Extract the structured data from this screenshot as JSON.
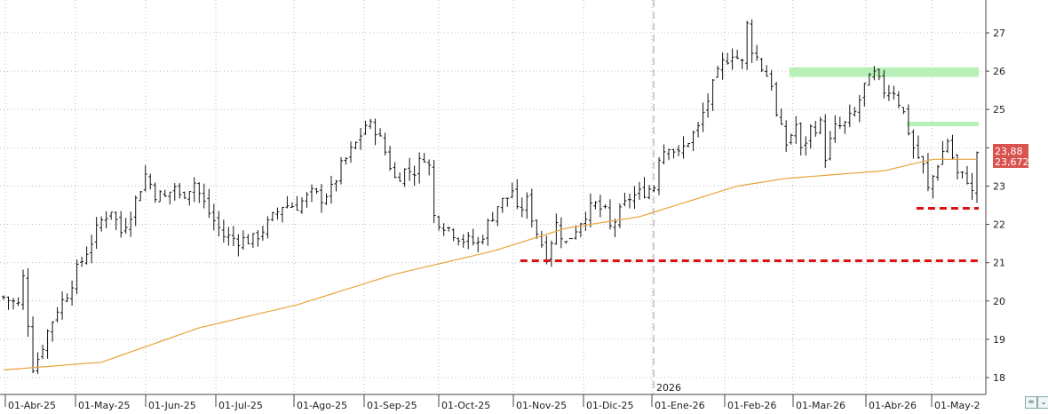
{
  "chart_data": {
    "type": "ohlc",
    "y_axis": {
      "min": 17.7,
      "max": 27.9,
      "ticks": [
        18,
        19,
        20,
        21,
        22,
        23,
        24,
        25,
        26,
        27
      ]
    },
    "x_axis": {
      "ticks": [
        "01-Abr-25",
        "01-May-25",
        "01-Jun-25",
        "01-Jul-25",
        "01-Ago-25",
        "01-Sep-25",
        "01-Oct-25",
        "01-Nov-25",
        "01-Dic-25",
        "01-Ene-26",
        "01-Feb-26",
        "01-Mar-26",
        "01-Abr-26",
        "01-May-2"
      ],
      "year_label": "2026"
    },
    "anchors": [
      [
        0,
        20.1
      ],
      [
        3,
        19.9
      ],
      [
        4,
        20.6
      ],
      [
        6,
        18.3
      ],
      [
        7,
        18.5
      ],
      [
        9,
        19.2
      ],
      [
        11,
        19.8
      ],
      [
        13,
        20.2
      ],
      [
        15,
        20.8
      ],
      [
        17,
        21.3
      ],
      [
        20,
        22.1
      ],
      [
        22,
        22.4
      ],
      [
        24,
        21.8
      ],
      [
        26,
        22.3
      ],
      [
        29,
        23.3
      ],
      [
        31,
        22.8
      ],
      [
        33,
        22.7
      ],
      [
        35,
        23.0
      ],
      [
        36,
        22.7
      ],
      [
        39,
        23.1
      ],
      [
        40,
        22.8
      ],
      [
        42,
        22.3
      ],
      [
        45,
        21.7
      ],
      [
        48,
        21.6
      ],
      [
        51,
        21.6
      ],
      [
        54,
        22.0
      ],
      [
        57,
        22.5
      ],
      [
        60,
        22.5
      ],
      [
        63,
        22.8
      ],
      [
        65,
        22.7
      ],
      [
        67,
        22.9
      ],
      [
        69,
        23.5
      ],
      [
        72,
        24.1
      ],
      [
        74,
        24.6
      ],
      [
        76,
        24.5
      ],
      [
        78,
        23.9
      ],
      [
        80,
        23.2
      ],
      [
        82,
        23.4
      ],
      [
        84,
        23.4
      ],
      [
        86,
        23.8
      ],
      [
        87,
        23.5
      ],
      [
        88,
        22.2
      ],
      [
        90,
        22.0
      ],
      [
        92,
        21.8
      ],
      [
        94,
        21.6
      ],
      [
        97,
        21.5
      ],
      [
        99,
        22.0
      ],
      [
        101,
        22.5
      ],
      [
        103,
        22.7
      ],
      [
        104,
        22.9
      ],
      [
        105,
        22.3
      ],
      [
        107,
        22.6
      ],
      [
        109,
        21.8
      ],
      [
        111,
        21.2
      ],
      [
        113,
        22.0
      ],
      [
        115,
        21.5
      ],
      [
        117,
        21.9
      ],
      [
        119,
        22.3
      ],
      [
        121,
        22.5
      ],
      [
        123,
        22.3
      ],
      [
        124,
        21.9
      ],
      [
        126,
        22.3
      ],
      [
        128,
        22.7
      ],
      [
        130,
        22.8
      ],
      [
        133,
        23.0
      ],
      [
        134,
        23.8
      ],
      [
        136,
        24.1
      ],
      [
        138,
        23.8
      ],
      [
        140,
        24.2
      ],
      [
        142,
        24.5
      ],
      [
        143,
        24.9
      ],
      [
        145,
        25.6
      ],
      [
        147,
        26.2
      ],
      [
        149,
        26.5
      ],
      [
        151,
        26.2
      ],
      [
        152,
        27.2
      ],
      [
        153,
        26.6
      ],
      [
        155,
        26.1
      ],
      [
        157,
        25.7
      ],
      [
        158,
        24.8
      ],
      [
        160,
        24.1
      ],
      [
        162,
        24.6
      ],
      [
        163,
        23.9
      ],
      [
        165,
        24.5
      ],
      [
        167,
        24.6
      ],
      [
        168,
        23.8
      ],
      [
        170,
        24.5
      ],
      [
        172,
        24.6
      ],
      [
        174,
        24.9
      ],
      [
        176,
        25.6
      ],
      [
        178,
        25.9
      ],
      [
        180,
        25.5
      ],
      [
        182,
        25.5
      ],
      [
        184,
        24.9
      ],
      [
        186,
        24.0
      ],
      [
        188,
        23.5
      ],
      [
        189,
        22.9
      ],
      [
        191,
        23.6
      ],
      [
        193,
        24.2
      ],
      [
        195,
        23.3
      ],
      [
        197,
        23.2
      ],
      [
        198,
        22.8
      ],
      [
        199,
        23.9
      ]
    ],
    "ma_anchors": [
      [
        0,
        18.2
      ],
      [
        20,
        18.4
      ],
      [
        40,
        19.3
      ],
      [
        60,
        19.9
      ],
      [
        80,
        20.7
      ],
      [
        100,
        21.3
      ],
      [
        115,
        21.9
      ],
      [
        130,
        22.2
      ],
      [
        140,
        22.6
      ],
      [
        150,
        23.0
      ],
      [
        160,
        23.2
      ],
      [
        170,
        23.3
      ],
      [
        180,
        23.4
      ],
      [
        190,
        23.7
      ],
      [
        200,
        23.7
      ]
    ],
    "n_bars": 200,
    "moving_average": {
      "color": "#e8a33a"
    },
    "support_lines": [
      {
        "y": 21.05,
        "from_bar": 106,
        "to_bar": 200
      },
      {
        "y": 22.42,
        "from_bar": 187,
        "to_bar": 200
      }
    ],
    "resistance_zones": [
      {
        "y_low": 25.85,
        "y_high": 26.1,
        "from_bar": 161,
        "to_bar": 200
      },
      {
        "y_low": 24.56,
        "y_high": 24.68,
        "from_bar": 185,
        "to_bar": 200
      }
    ],
    "last_price": "23,88",
    "ma_value": "23,6725",
    "colors": {
      "bars": "#111111",
      "support": "#dd1111",
      "zone": "#b8f0b8",
      "price_box": "#d9534f",
      "grid": "#bfbfbf"
    }
  }
}
